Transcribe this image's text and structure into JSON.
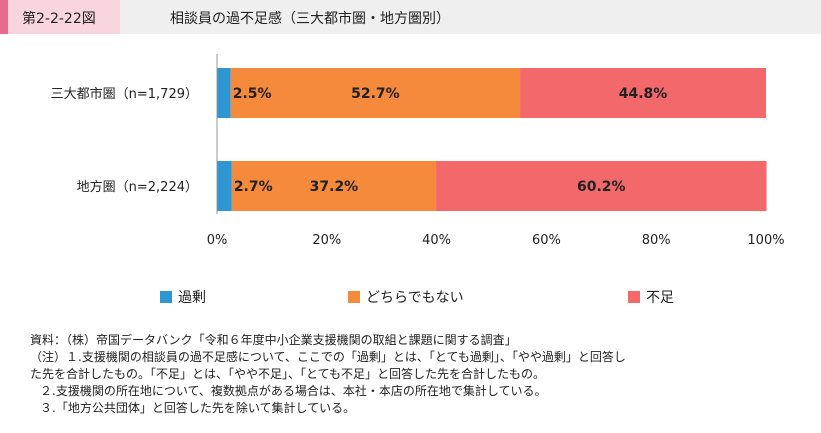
{
  "header": {
    "figure_id": "第2-2-22図",
    "title": "相談員の過不足感（三大都市圏・地方圏別）"
  },
  "colors": {
    "excess": "#2e97d2",
    "neither": "#f5893c",
    "shortage": "#f2686b"
  },
  "chart_data": {
    "type": "bar",
    "orientation": "horizontal",
    "stacked": true,
    "categories": [
      "三大都市圏（n=1,729）",
      "地方圏（n=2,224）"
    ],
    "series": [
      {
        "name": "過剰",
        "values": [
          2.5,
          2.7
        ]
      },
      {
        "name": "どちらでもない",
        "values": [
          52.7,
          37.2
        ]
      },
      {
        "name": "不足",
        "values": [
          44.8,
          60.2
        ]
      }
    ],
    "xlim": [
      0,
      100
    ],
    "x_ticks": [
      "0%",
      "20%",
      "40%",
      "60%",
      "80%",
      "100%"
    ],
    "data_labels": [
      [
        "2.5%",
        "52.7%",
        "44.8%"
      ],
      [
        "2.7%",
        "37.2%",
        "60.2%"
      ]
    ],
    "legend": "bottom"
  },
  "notes": {
    "source": "資料：（株）帝国データバンク「令和６年度中小企業支援機関の取組と課題に関する調査」",
    "note1_line1": "（注）１.支援機関の相談員の過不足感について、ここでの「過剰」とは、「とても過剰」、「やや過剰」と回答し",
    "note1_line2": "た先を合計したもの。「不足」とは、「やや不足」、「とても不足」と回答した先を合計したもの。",
    "note2": "２.支援機関の所在地について、複数拠点がある場合は、本社・本店の所在地で集計している。",
    "note3": "３.「地方公共団体」と回答した先を除いて集計している。"
  }
}
